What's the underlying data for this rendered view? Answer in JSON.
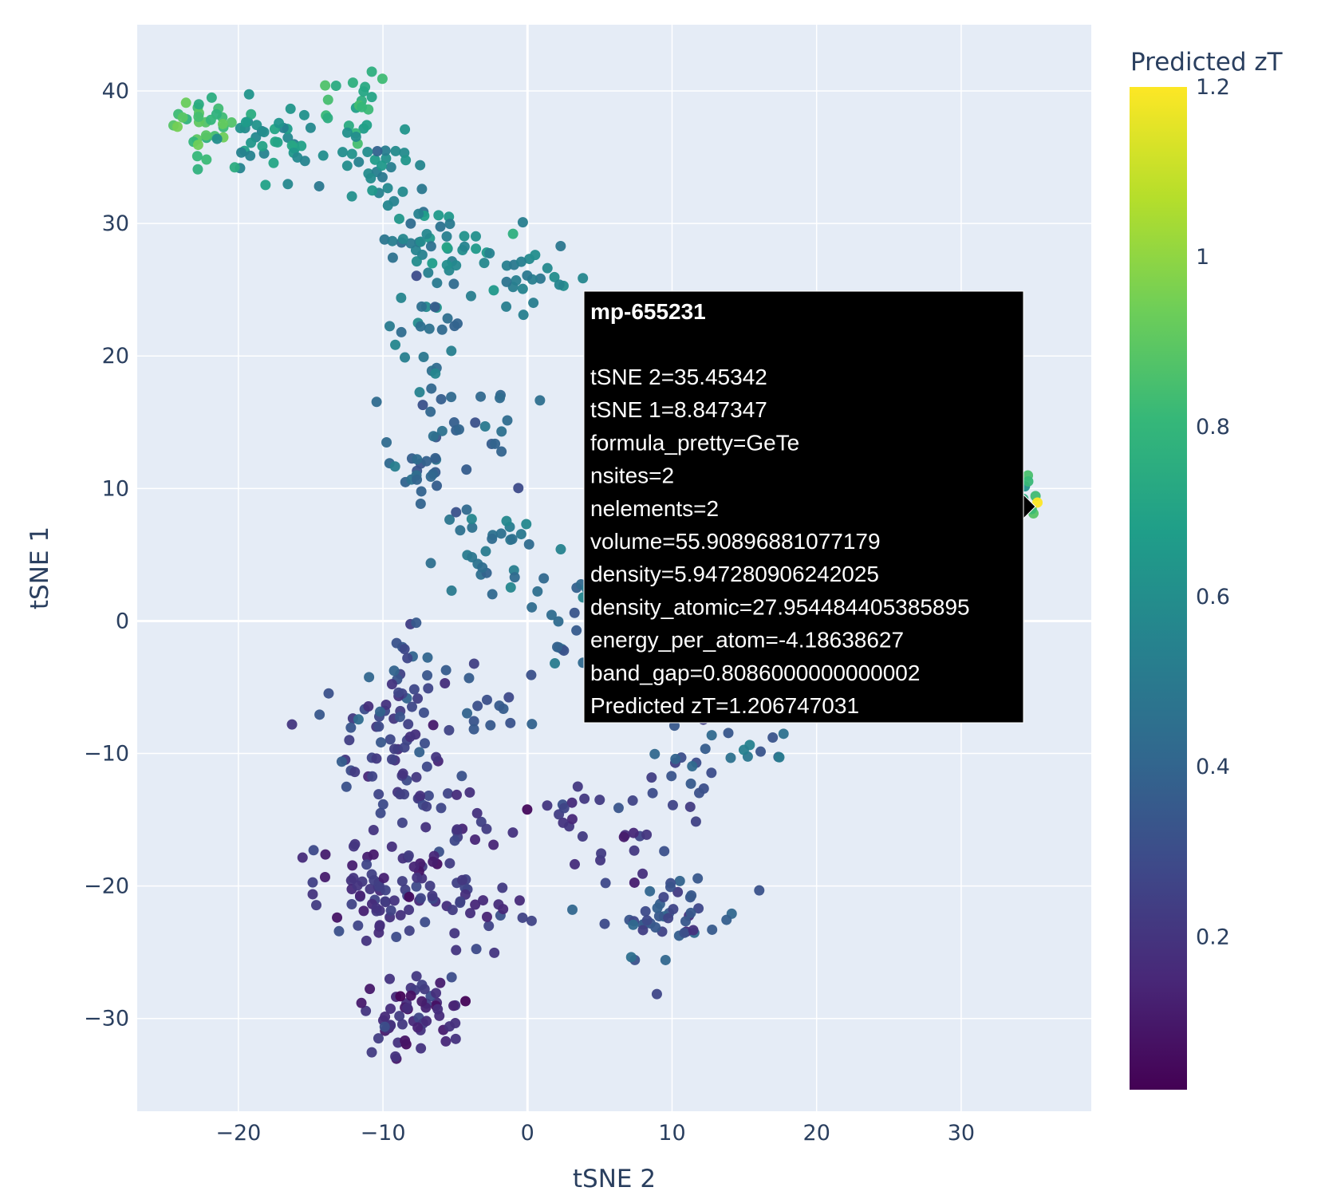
{
  "chart_data": {
    "type": "scatter",
    "xlabel": "tSNE 2",
    "ylabel": "tSNE 1",
    "xlim": [
      -27,
      39
    ],
    "ylim": [
      -37,
      45
    ],
    "x_ticks": [
      -20,
      -10,
      0,
      10,
      20,
      30
    ],
    "x_tick_labels": [
      "−20",
      "−10",
      "0",
      "10",
      "20",
      "30"
    ],
    "y_ticks": [
      -30,
      -20,
      -10,
      0,
      10,
      20,
      30,
      40
    ],
    "y_tick_labels": [
      "−30",
      "−20",
      "−10",
      "0",
      "10",
      "20",
      "30",
      "40"
    ],
    "grid": true,
    "plot_background": "#e5ecf6",
    "colorbar": {
      "title": "Predicted zT",
      "colorscale": "viridis",
      "range": [
        0.02,
        1.2
      ],
      "ticks": [
        0.2,
        0.4,
        0.6,
        0.8,
        1.0,
        1.2
      ],
      "tick_labels": [
        "0.2",
        "0.4",
        "0.6",
        "0.8",
        "1",
        "1.2"
      ]
    },
    "clusters": [
      {
        "center": [
          -22.5,
          37.5
        ],
        "spread": [
          1.0,
          1.3
        ],
        "n": 30,
        "z": 0.85
      },
      {
        "center": [
          -18,
          36
        ],
        "spread": [
          2.0,
          1.5
        ],
        "n": 40,
        "z": 0.62
      },
      {
        "center": [
          -12,
          39
        ],
        "spread": [
          1.3,
          1.3
        ],
        "n": 20,
        "z": 0.78
      },
      {
        "center": [
          -10.5,
          34.5
        ],
        "spread": [
          1.8,
          2.0
        ],
        "n": 30,
        "z": 0.6
      },
      {
        "center": [
          -7.5,
          29
        ],
        "spread": [
          1.2,
          2.0
        ],
        "n": 25,
        "z": 0.52
      },
      {
        "center": [
          -4,
          28
        ],
        "spread": [
          1.8,
          1.2
        ],
        "n": 20,
        "z": 0.6
      },
      {
        "center": [
          0.5,
          25.5
        ],
        "spread": [
          2.0,
          1.2
        ],
        "n": 25,
        "z": 0.55
      },
      {
        "center": [
          -7,
          22
        ],
        "spread": [
          1.2,
          1.8
        ],
        "n": 22,
        "z": 0.45
      },
      {
        "center": [
          -5,
          15
        ],
        "spread": [
          3.0,
          2.5
        ],
        "n": 25,
        "z": 0.4
      },
      {
        "center": [
          -7.5,
          12
        ],
        "spread": [
          1.0,
          1.5
        ],
        "n": 20,
        "z": 0.4
      },
      {
        "center": [
          -3,
          5
        ],
        "spread": [
          2.5,
          1.8
        ],
        "n": 30,
        "z": 0.48
      },
      {
        "center": [
          4,
          1
        ],
        "spread": [
          2.5,
          3.0
        ],
        "n": 35,
        "z": 0.42
      },
      {
        "center": [
          -8.5,
          -3
        ],
        "spread": [
          1.2,
          2.0
        ],
        "n": 20,
        "z": 0.32
      },
      {
        "center": [
          -10.5,
          -8
        ],
        "spread": [
          2.5,
          2.2
        ],
        "n": 45,
        "z": 0.25
      },
      {
        "center": [
          -3,
          -7
        ],
        "spread": [
          2.0,
          2.0
        ],
        "n": 15,
        "z": 0.3
      },
      {
        "center": [
          -8,
          -13
        ],
        "spread": [
          2.5,
          1.5
        ],
        "n": 25,
        "z": 0.25
      },
      {
        "center": [
          -4,
          -15.5
        ],
        "spread": [
          1.5,
          1.2
        ],
        "n": 12,
        "z": 0.22
      },
      {
        "center": [
          2,
          -14
        ],
        "spread": [
          2.5,
          1.2
        ],
        "n": 15,
        "z": 0.22
      },
      {
        "center": [
          9.5,
          -13
        ],
        "spread": [
          2.0,
          1.5
        ],
        "n": 15,
        "z": 0.3
      },
      {
        "center": [
          15,
          -8.5
        ],
        "spread": [
          2.5,
          1.3
        ],
        "n": 18,
        "z": 0.4
      },
      {
        "center": [
          -10,
          -20.5
        ],
        "spread": [
          2.5,
          2.0
        ],
        "n": 80,
        "z": 0.18
      },
      {
        "center": [
          -4,
          -21
        ],
        "spread": [
          2.0,
          1.8
        ],
        "n": 25,
        "z": 0.2
      },
      {
        "center": [
          -8,
          -29.5
        ],
        "spread": [
          1.8,
          1.6
        ],
        "n": 60,
        "z": 0.17
      },
      {
        "center": [
          10,
          -22.5
        ],
        "spread": [
          2.3,
          1.8
        ],
        "n": 45,
        "z": 0.32
      },
      {
        "center": [
          7.5,
          -18
        ],
        "spread": [
          1.5,
          1.5
        ],
        "n": 12,
        "z": 0.2
      },
      {
        "center": [
          35,
          9.5
        ],
        "spread": [
          0.4,
          1.0
        ],
        "n": 8,
        "z": 0.8
      },
      {
        "center": [
          35.3,
          8.85
        ],
        "spread": [
          0.05,
          0.05
        ],
        "n": 1,
        "z": 1.2
      }
    ],
    "hover": {
      "id": "mp-655231",
      "lines": [
        "tSNE 2=35.45342",
        "tSNE 1=8.847347",
        "formula_pretty=GeTe",
        "nsites=2",
        "nelements=2",
        "volume=55.90896881077179",
        "density=5.947280906242025",
        "density_atomic=27.954484405385895",
        "energy_per_atom=-4.18638627",
        "band_gap=0.8086000000000002",
        "Predicted zT=1.206747031"
      ],
      "x": 35.45342,
      "y": 8.847347
    }
  }
}
